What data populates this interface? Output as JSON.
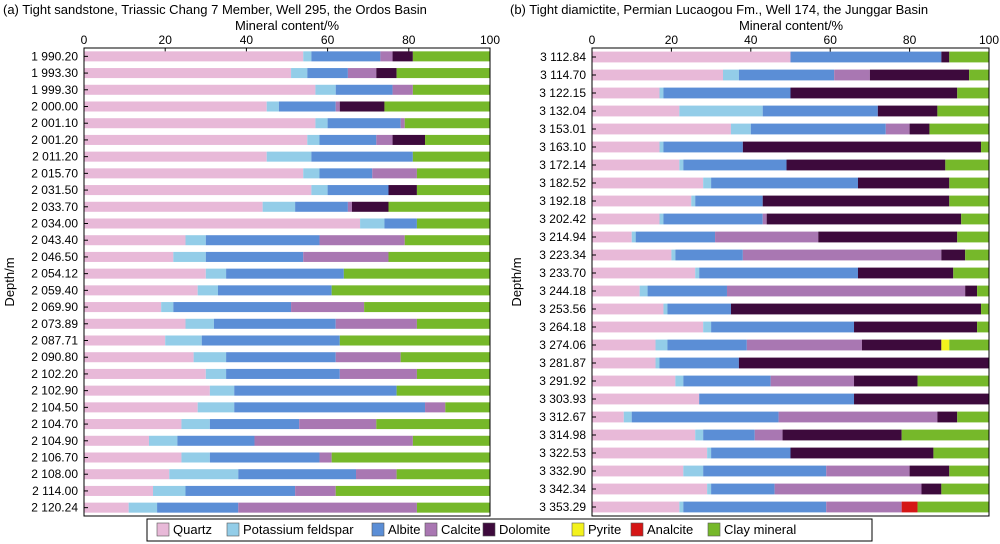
{
  "charts": {
    "mineral_order": [
      "Quartz",
      "Potassium feldspar",
      "Albite",
      "Calcite",
      "Dolomite",
      "Pyrite",
      "Analcite",
      "Clay mineral"
    ]
  },
  "colors": {
    "Quartz": "#e8b9d8",
    "Potassium feldspar": "#93cde8",
    "Albite": "#5b8ed6",
    "Calcite": "#a977b2",
    "Dolomite": "#3d0a3c",
    "Pyrite": "#f3f21c",
    "Analcite": "#d51616",
    "Clay mineral": "#76b82a"
  },
  "legend": {
    "items": [
      "Quartz",
      "Potassium feldspar",
      "Albite",
      "Calcite",
      "Dolomite",
      "Pyrite",
      "Analcite",
      "Clay mineral"
    ]
  },
  "chart_data": [
    {
      "type": "bar",
      "orientation": "horizontal-stacked",
      "title": "(a) Tight sandstone, Triassic Chang 7 Member, Well 295, the Ordos Basin",
      "xlabel": "Mineral content/%",
      "ylabel": "Depth/m",
      "xlim": [
        0,
        100
      ],
      "xticks": [
        "0",
        "20",
        "40",
        "60",
        "80",
        "100"
      ],
      "categories": [
        "1 990.20",
        "1 993.30",
        "1 999.30",
        "2 000.00",
        "2 001.10",
        "2 001.20",
        "2 011.20",
        "2 015.70",
        "2 031.50",
        "2 033.70",
        "2 034.00",
        "2 043.40",
        "2 046.50",
        "2 054.12",
        "2 059.40",
        "2 069.90",
        "2 073.89",
        "2 087.71",
        "2 090.80",
        "2 102.20",
        "2 102.90",
        "2 104.50",
        "2 104.70",
        "2 104.90",
        "2 106.70",
        "2 108.00",
        "2 114.00",
        "2 120.24"
      ],
      "series": [
        {
          "name": "Quartz",
          "values": [
            54,
            51,
            57,
            45,
            57,
            55,
            45,
            54,
            56,
            44,
            68,
            25,
            22,
            30,
            28,
            19,
            25,
            20,
            27,
            30,
            31,
            28,
            24,
            16,
            24,
            21,
            17,
            11
          ]
        },
        {
          "name": "Potassium feldspar",
          "values": [
            2,
            4,
            5,
            3,
            3,
            3,
            11,
            4,
            4,
            8,
            6,
            5,
            8,
            5,
            5,
            3,
            7,
            9,
            8,
            5,
            6,
            9,
            7,
            7,
            7,
            17,
            8,
            7
          ]
        },
        {
          "name": "Albite",
          "values": [
            17,
            10,
            14,
            14,
            18,
            14,
            25,
            13,
            15,
            13,
            8,
            28,
            24,
            29,
            28,
            29,
            30,
            34,
            27,
            28,
            40,
            47,
            22,
            19,
            27,
            29,
            27,
            20
          ]
        },
        {
          "name": "Calcite",
          "values": [
            3,
            7,
            5,
            1,
            1,
            4,
            0,
            11,
            0,
            1,
            0,
            21,
            21,
            0,
            0,
            18,
            20,
            0,
            16,
            19,
            0,
            5,
            19,
            39,
            3,
            10,
            10,
            44
          ]
        },
        {
          "name": "Dolomite",
          "values": [
            5,
            5,
            0,
            11,
            0,
            8,
            0,
            0,
            7,
            9,
            0,
            0,
            0,
            0,
            0,
            0,
            0,
            0,
            0,
            0,
            0,
            0,
            0,
            0,
            0,
            0,
            0,
            0
          ]
        },
        {
          "name": "Pyrite",
          "values": [
            0,
            0,
            0,
            0,
            0,
            0,
            0,
            0,
            0,
            0,
            0,
            0,
            0,
            0,
            0,
            0,
            0,
            0,
            0,
            0,
            0,
            0,
            0,
            0,
            0,
            0,
            0,
            0
          ]
        },
        {
          "name": "Analcite",
          "values": [
            0,
            0,
            0,
            0,
            0,
            0,
            0,
            0,
            0,
            0,
            0,
            0,
            0,
            0,
            0,
            0,
            0,
            0,
            0,
            0,
            0,
            0,
            0,
            0,
            0,
            0,
            0,
            0
          ]
        },
        {
          "name": "Clay mineral",
          "values": [
            19,
            23,
            19,
            26,
            21,
            16,
            19,
            18,
            18,
            25,
            18,
            21,
            25,
            36,
            39,
            31,
            18,
            37,
            22,
            18,
            23,
            11,
            28,
            19,
            39,
            23,
            38,
            18
          ]
        }
      ]
    },
    {
      "type": "bar",
      "orientation": "horizontal-stacked",
      "title": "(b) Tight diamictite, Permian Lucaogou Fm., Well 174, the Junggar Basin",
      "xlabel": "Mineral content/%",
      "ylabel": "Depth/m",
      "xlim": [
        0,
        100
      ],
      "xticks": [
        "0",
        "20",
        "40",
        "60",
        "80",
        "100"
      ],
      "categories": [
        "3 112.84",
        "3 114.70",
        "3 122.15",
        "3 132.04",
        "3 153.01",
        "3 163.10",
        "3 172.14",
        "3 182.52",
        "3 192.18",
        "3 202.42",
        "3 214.94",
        "3 223.34",
        "3 233.70",
        "3 244.18",
        "3 253.56",
        "3 264.18",
        "3 274.06",
        "3 281.87",
        "3 291.92",
        "3 303.93",
        "3 312.67",
        "3 314.98",
        "3 322.53",
        "3 332.90",
        "3 342.34",
        "3 353.29"
      ],
      "series": [
        {
          "name": "Quartz",
          "values": [
            50,
            33,
            17,
            22,
            35,
            17,
            22,
            28,
            25,
            17,
            10,
            20,
            26,
            12,
            18,
            28,
            16,
            16,
            21,
            27,
            8,
            26,
            29,
            23,
            29,
            22
          ]
        },
        {
          "name": "Potassium feldspar",
          "values": [
            0,
            4,
            1,
            21,
            5,
            1,
            1,
            2,
            1,
            1,
            1,
            1,
            1,
            2,
            1,
            2,
            3,
            1,
            2,
            0,
            2,
            2,
            1,
            5,
            1,
            1
          ]
        },
        {
          "name": "Albite",
          "values": [
            38,
            24,
            32,
            29,
            34,
            20,
            26,
            37,
            17,
            25,
            20,
            17,
            40,
            20,
            16,
            36,
            20,
            20,
            22,
            39,
            37,
            13,
            20,
            31,
            16,
            36
          ]
        },
        {
          "name": "Calcite",
          "values": [
            0,
            9,
            0,
            0,
            6,
            0,
            0,
            0,
            0,
            1,
            26,
            50,
            0,
            60,
            0,
            0,
            29,
            0,
            21,
            0,
            40,
            7,
            0,
            21,
            37,
            19
          ]
        },
        {
          "name": "Dolomite",
          "values": [
            2,
            25,
            42,
            15,
            5,
            60,
            40,
            23,
            47,
            49,
            35,
            6,
            24,
            3,
            63,
            31,
            20,
            63,
            16,
            34,
            5,
            30,
            36,
            10,
            5,
            0
          ]
        },
        {
          "name": "Pyrite",
          "values": [
            0,
            0,
            0,
            0,
            0,
            0,
            0,
            0,
            0,
            0,
            0,
            0,
            0,
            0,
            0,
            0,
            2,
            0,
            0,
            0,
            0,
            0,
            0,
            0,
            0,
            0
          ]
        },
        {
          "name": "Analcite",
          "values": [
            0,
            0,
            0,
            0,
            0,
            0,
            0,
            0,
            0,
            0,
            0,
            0,
            0,
            0,
            0,
            0,
            0,
            0,
            0,
            0,
            0,
            0,
            0,
            0,
            0,
            4
          ]
        },
        {
          "name": "Clay mineral",
          "values": [
            10,
            5,
            8,
            13,
            15,
            2,
            11,
            10,
            10,
            7,
            8,
            6,
            9,
            3,
            2,
            3,
            10,
            0,
            18,
            0,
            8,
            22,
            14,
            10,
            12,
            18
          ]
        }
      ]
    }
  ]
}
